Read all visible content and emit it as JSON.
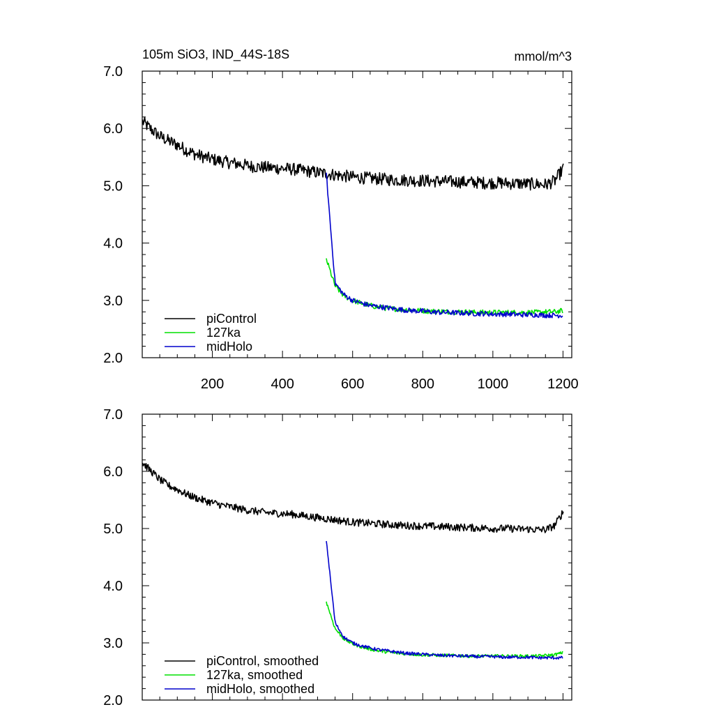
{
  "chart_data": [
    {
      "type": "line",
      "title_left": "105m SiO3, IND_44S-18S",
      "title_right": "mmol/m^3",
      "xlim": [
        0,
        1225
      ],
      "ylim": [
        2.0,
        7.0
      ],
      "xticks": [
        200,
        400,
        600,
        800,
        1000,
        1200
      ],
      "xtick_labels": [
        "200",
        "400",
        "600",
        "800",
        "1000",
        "1200"
      ],
      "yticks": [
        2.0,
        3.0,
        4.0,
        5.0,
        6.0,
        7.0
      ],
      "ytick_labels": [
        "2.0",
        "3.0",
        "4.0",
        "5.0",
        "6.0",
        "7.0"
      ],
      "legend_position": "bottom-left",
      "series": [
        {
          "name": "piControl",
          "color": "#000000",
          "x_start": 1,
          "x_step": 25,
          "values": [
            6.12,
            5.98,
            5.86,
            5.78,
            5.71,
            5.62,
            5.55,
            5.5,
            5.46,
            5.43,
            5.4,
            5.38,
            5.35,
            5.33,
            5.32,
            5.31,
            5.3,
            5.29,
            5.27,
            5.25,
            5.23,
            5.21,
            5.19,
            5.17,
            5.15,
            5.14,
            5.13,
            5.12,
            5.11,
            5.1,
            5.1,
            5.09,
            5.09,
            5.08,
            5.08,
            5.07,
            5.07,
            5.06,
            5.06,
            5.05,
            5.05,
            5.05,
            5.04,
            5.04,
            5.03,
            5.03,
            5.02,
            5.08,
            5.3
          ]
        },
        {
          "name": "127ka",
          "color": "#00e000",
          "x_start": 525,
          "x_step": 25,
          "values": [
            3.72,
            3.25,
            3.08,
            3.0,
            2.95,
            2.91,
            2.88,
            2.86,
            2.85,
            2.84,
            2.83,
            2.82,
            2.81,
            2.81,
            2.8,
            2.8,
            2.8,
            2.79,
            2.79,
            2.79,
            2.79,
            2.79,
            2.79,
            2.79,
            2.79,
            2.8,
            2.8,
            2.82
          ]
        },
        {
          "name": "midHolo",
          "color": "#0000cc",
          "x_start": 525,
          "x_step": 25,
          "values": [
            5.2,
            3.3,
            3.1,
            3.0,
            2.95,
            2.91,
            2.89,
            2.87,
            2.85,
            2.83,
            2.82,
            2.81,
            2.8,
            2.79,
            2.79,
            2.78,
            2.78,
            2.77,
            2.77,
            2.76,
            2.76,
            2.76,
            2.75,
            2.75,
            2.75,
            2.74,
            2.74,
            2.74
          ]
        }
      ]
    },
    {
      "type": "line",
      "title_left": "",
      "title_right": "",
      "xlim": [
        0,
        1225
      ],
      "ylim": [
        2.0,
        7.0
      ],
      "xticks": [
        200,
        400,
        600,
        800,
        1000,
        1200
      ],
      "xtick_labels": [],
      "yticks": [
        2.0,
        3.0,
        4.0,
        5.0,
        6.0,
        7.0
      ],
      "ytick_labels": [
        "2.0",
        "3.0",
        "4.0",
        "5.0",
        "6.0",
        "7.0"
      ],
      "legend_position": "bottom-left",
      "series": [
        {
          "name": "piControl, smoothed",
          "color": "#000000",
          "x_start": 1,
          "x_step": 25,
          "values": [
            6.15,
            6.0,
            5.85,
            5.75,
            5.68,
            5.6,
            5.54,
            5.49,
            5.45,
            5.41,
            5.38,
            5.35,
            5.32,
            5.3,
            5.28,
            5.27,
            5.26,
            5.25,
            5.23,
            5.21,
            5.19,
            5.17,
            5.15,
            5.13,
            5.11,
            5.1,
            5.09,
            5.08,
            5.07,
            5.06,
            5.05,
            5.05,
            5.04,
            5.04,
            5.03,
            5.03,
            5.02,
            5.02,
            5.01,
            5.01,
            5.0,
            5.0,
            5.0,
            4.99,
            4.99,
            4.98,
            4.98,
            5.05,
            5.3
          ]
        },
        {
          "name": "127ka, smoothed",
          "color": "#00e000",
          "x_start": 525,
          "x_step": 25,
          "values": [
            3.72,
            3.25,
            3.07,
            2.98,
            2.93,
            2.89,
            2.86,
            2.84,
            2.82,
            2.81,
            2.8,
            2.79,
            2.79,
            2.78,
            2.78,
            2.78,
            2.77,
            2.77,
            2.77,
            2.77,
            2.77,
            2.77,
            2.77,
            2.77,
            2.77,
            2.78,
            2.79,
            2.83
          ]
        },
        {
          "name": "midHolo, smoothed",
          "color": "#0000cc",
          "x_start": 525,
          "x_step": 25,
          "values": [
            4.8,
            3.35,
            3.1,
            3.0,
            2.95,
            2.91,
            2.88,
            2.86,
            2.84,
            2.82,
            2.81,
            2.8,
            2.79,
            2.78,
            2.78,
            2.77,
            2.77,
            2.76,
            2.76,
            2.76,
            2.75,
            2.75,
            2.75,
            2.75,
            2.74,
            2.74,
            2.74,
            2.74
          ]
        }
      ]
    }
  ]
}
